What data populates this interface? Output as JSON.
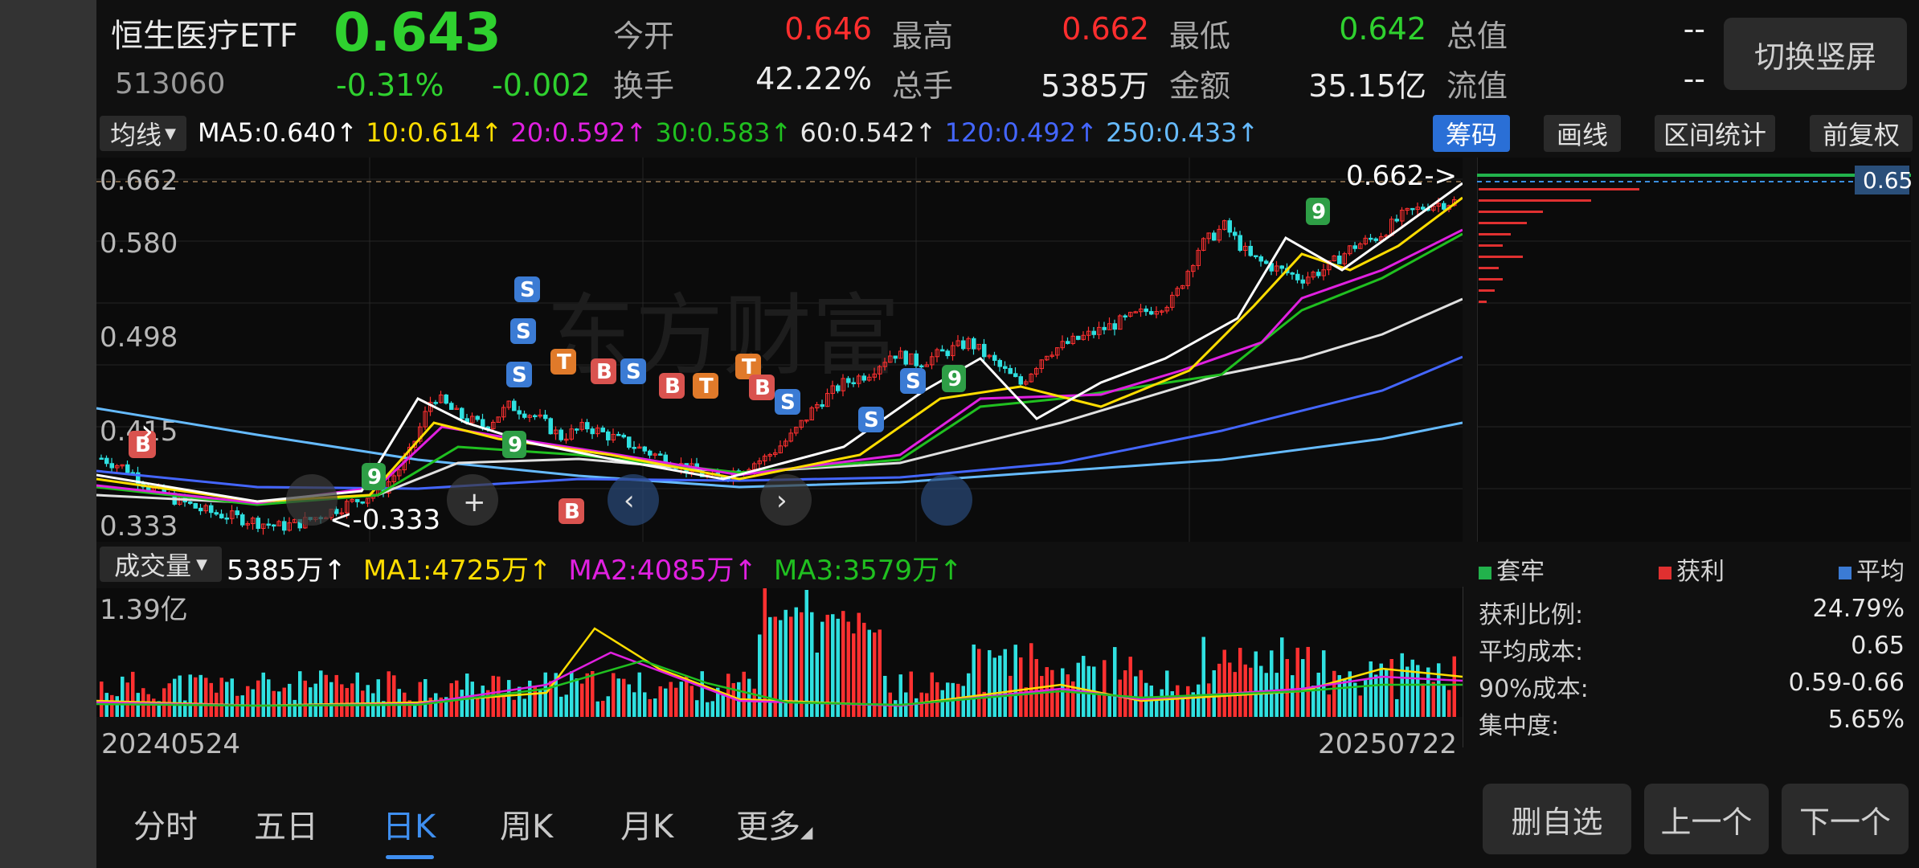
{
  "header": {
    "name": "恒生医疗ETF",
    "code": "513060",
    "price": "0.643",
    "change_pct": "-0.31%",
    "change": "-0.002",
    "switch_button": "切换竖屏"
  },
  "quote": {
    "open_label": "今开",
    "open": "0.646",
    "high_label": "最高",
    "high": "0.662",
    "low_label": "最低",
    "low": "0.642",
    "mktcap_label": "总值",
    "mktcap": "--",
    "turnover_label": "换手",
    "turnover": "42.22%",
    "volume_label": "总手",
    "volume": "5385万",
    "amount_label": "金额",
    "amount": "35.15亿",
    "float_label": "流值",
    "float": "--"
  },
  "ma_bar": {
    "selector": "均线",
    "ma5": "MA5:0.640↑",
    "ma10": "10:0.614↑",
    "ma20": "20:0.592↑",
    "ma30": "30:0.583↑",
    "ma60": "60:0.542↑",
    "ma120": "120:0.492↑",
    "ma250": "250:0.433↑",
    "colors": {
      "ma5": "#ffffff",
      "ma10": "#ffdd00",
      "ma20": "#e020e0",
      "ma30": "#20c020",
      "ma60": "#e8e8e8",
      "ma120": "#4466ff",
      "ma250": "#66bbff"
    }
  },
  "tools": {
    "chips": "筹码",
    "draw": "画线",
    "range": "区间统计",
    "adjust": "前复权"
  },
  "kchart": {
    "y_labels": [
      "0.662",
      "0.580",
      "0.498",
      "0.415",
      "0.333"
    ],
    "high_marker": "0.662",
    "low_marker": "0.333",
    "right_price_badge": "0.65",
    "watermark": "东方财富"
  },
  "volume": {
    "selector": "成交量",
    "vol": "5385万↑",
    "ma1": "MA1:4725万↑",
    "ma2": "MA2:4085万↑",
    "ma3": "MA3:3579万↑",
    "max_label": "1.39亿",
    "start_date": "20240524",
    "end_date": "20250722"
  },
  "chips_legend": {
    "trapped": "套牢",
    "profit": "获利",
    "average": "平均"
  },
  "chips_stats": [
    {
      "label": "获利比例:",
      "value": "24.79%"
    },
    {
      "label": "平均成本:",
      "value": "0.65"
    },
    {
      "label": "90%成本:",
      "value": "0.59-0.66"
    },
    {
      "label": "集中度:",
      "value": "5.65%"
    }
  ],
  "bottom_tabs": [
    "分时",
    "五日",
    "日K",
    "周K",
    "月K",
    "更多"
  ],
  "active_tab": "日K",
  "bottom_buttons": {
    "remove": "删自选",
    "prev": "上一个",
    "next": "下一个"
  },
  "chart_data": {
    "type": "candlestick",
    "x_start": "20240524",
    "x_end": "20250722",
    "ylim": [
      0.333,
      0.662
    ],
    "ma": {
      "MA5": 0.64,
      "MA10": 0.614,
      "MA20": 0.592,
      "MA30": 0.583,
      "MA60": 0.542,
      "MA120": 0.492,
      "MA250": 0.433
    },
    "close_trend": [
      0.4,
      0.39,
      0.37,
      0.36,
      0.35,
      0.345,
      0.34,
      0.335,
      0.34,
      0.35,
      0.36,
      0.37,
      0.4,
      0.46,
      0.44,
      0.43,
      0.45,
      0.44,
      0.42,
      0.43,
      0.42,
      0.41,
      0.4,
      0.39,
      0.38,
      0.39,
      0.4,
      0.42,
      0.45,
      0.47,
      0.48,
      0.5,
      0.49,
      0.5,
      0.51,
      0.49,
      0.47,
      0.5,
      0.51,
      0.52,
      0.53,
      0.54,
      0.55,
      0.6,
      0.62,
      0.59,
      0.58,
      0.57,
      0.58,
      0.6,
      0.61,
      0.63,
      0.64,
      0.643
    ]
  }
}
